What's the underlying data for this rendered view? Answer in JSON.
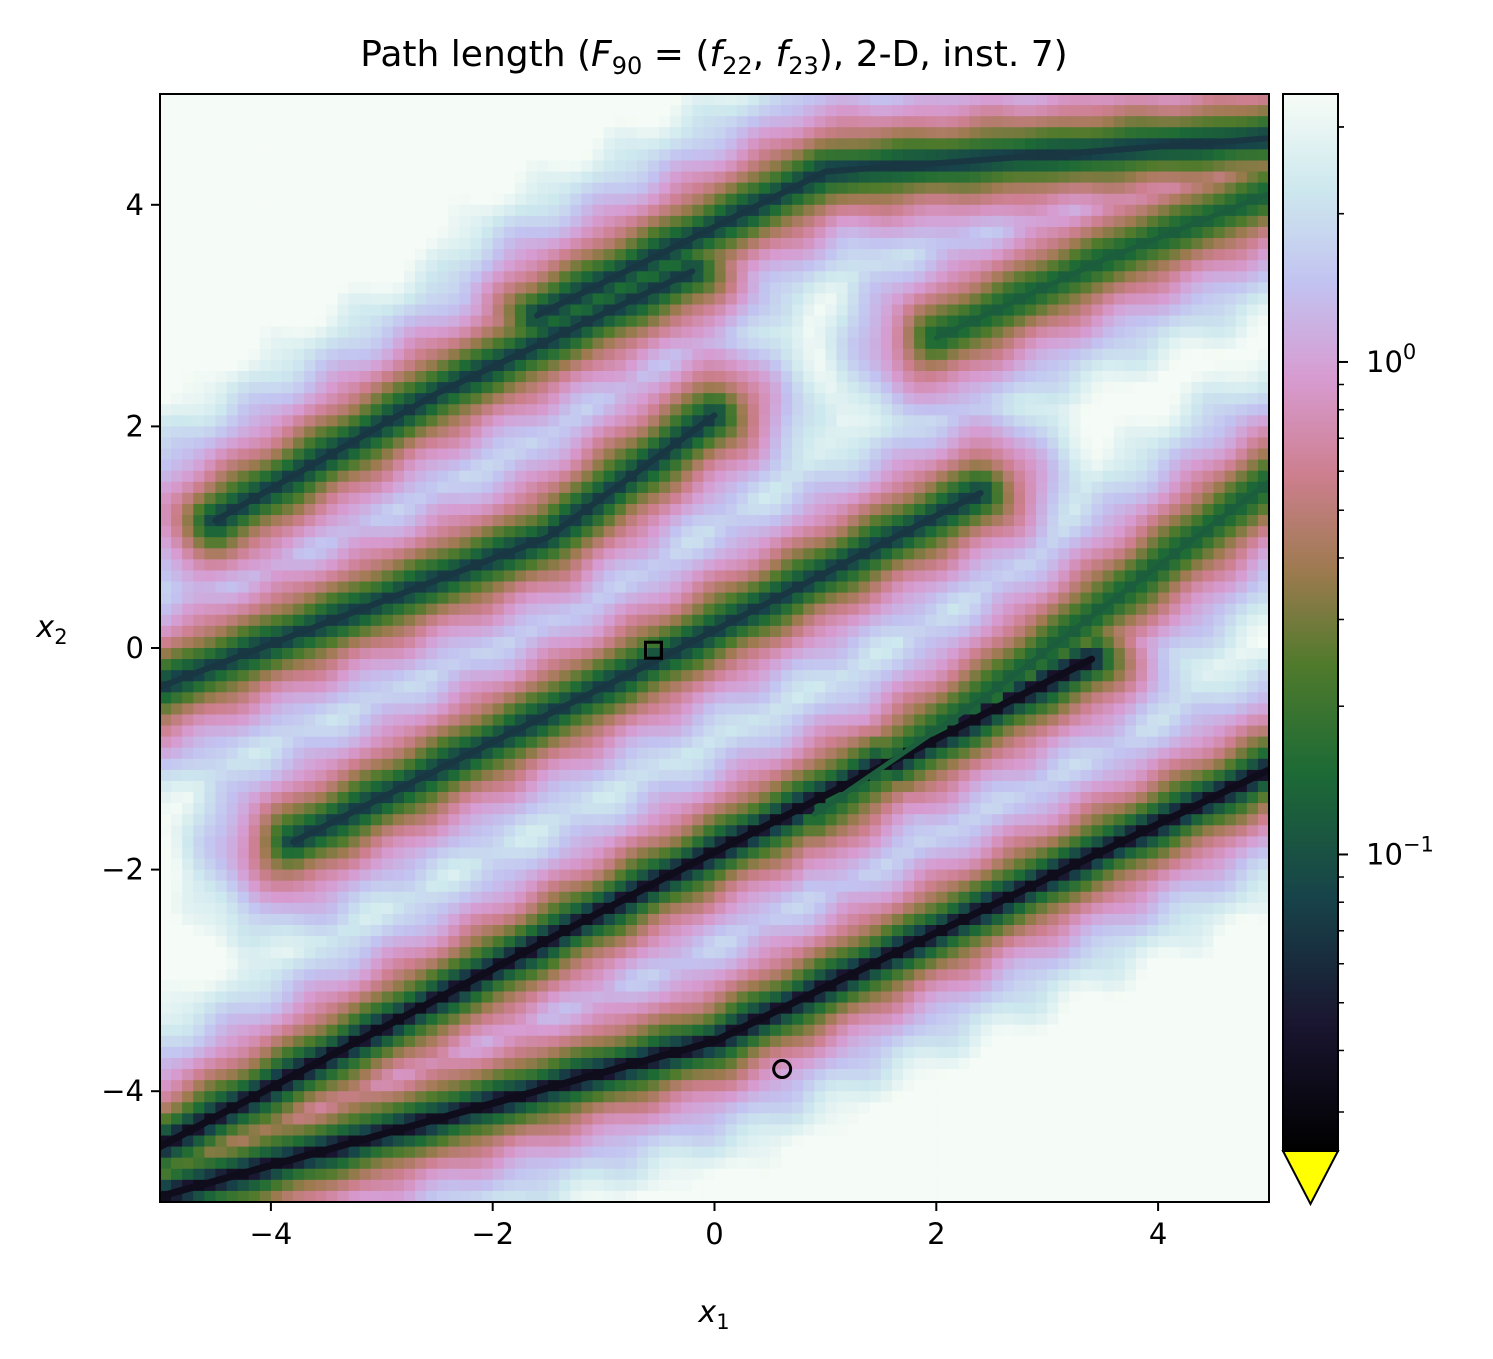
{
  "chart_data": {
    "type": "heatmap",
    "title": {
      "prefix": "Path length (",
      "F": "F",
      "F_sub": "90",
      "eq": " = (",
      "f1": "f",
      "f1_sub": "22",
      "comma": ", ",
      "f2": "f",
      "f2_sub": "23",
      "suffix": "), 2-D, inst. 7)"
    },
    "xlabel": {
      "base": "x",
      "sub": "1"
    },
    "ylabel": {
      "base": "x",
      "sub": "2"
    },
    "xlim": [
      -5,
      5
    ],
    "ylim": [
      -5,
      5
    ],
    "xticks": [
      {
        "value": -4,
        "label": "−4"
      },
      {
        "value": -2,
        "label": "−2"
      },
      {
        "value": 0,
        "label": "0"
      },
      {
        "value": 2,
        "label": "2"
      },
      {
        "value": 4,
        "label": "4"
      }
    ],
    "yticks": [
      {
        "value": 4,
        "label": "4"
      },
      {
        "value": 2,
        "label": "2"
      },
      {
        "value": 0,
        "label": "0"
      },
      {
        "value": -2,
        "label": "−2"
      },
      {
        "value": -4,
        "label": "−4"
      }
    ],
    "colorbar": {
      "scale": "log",
      "colormap": "cubehelix",
      "vmin": 0.025,
      "vmax": 3.5,
      "ticks": [
        {
          "value": 1.0,
          "base": "10",
          "exp": "0"
        },
        {
          "value": 0.1,
          "base": "10",
          "exp": "−1"
        }
      ],
      "extend": "min",
      "under_color": "#ffff00"
    },
    "valleys": [
      {
        "x": [
          -5.0,
          -0.5,
          3.4
        ],
        "y": [
          -4.5,
          -2.1,
          -0.1
        ],
        "depth": "deep"
      },
      {
        "x": [
          -5.0,
          0.0,
          5.0
        ],
        "y": [
          -4.95,
          -3.55,
          -1.1
        ],
        "depth": "deep"
      },
      {
        "x": [
          -3.8,
          -0.5,
          2.4
        ],
        "y": [
          -1.75,
          -0.1,
          1.4
        ],
        "depth": "medium"
      },
      {
        "x": [
          -5.0,
          -1.5,
          0.0
        ],
        "y": [
          -0.35,
          1.0,
          2.1
        ],
        "depth": "medium"
      },
      {
        "x": [
          -4.5,
          -2.5,
          -0.2
        ],
        "y": [
          1.15,
          2.3,
          3.4
        ],
        "depth": "medium"
      },
      {
        "x": [
          -1.6,
          1.0,
          5.0
        ],
        "y": [
          3.0,
          4.3,
          4.6
        ],
        "depth": "medium"
      },
      {
        "x": [
          2.0,
          3.5,
          5.0
        ],
        "y": [
          2.8,
          3.5,
          4.1
        ],
        "depth": "shallow"
      },
      {
        "x": [
          0.9,
          2.5,
          5.0
        ],
        "y": [
          -1.5,
          -0.4,
          1.5
        ],
        "depth": "shallow"
      }
    ],
    "markers": [
      {
        "shape": "square",
        "x": -0.55,
        "y": -0.02
      },
      {
        "shape": "circle",
        "x": 0.61,
        "y": -3.8
      }
    ]
  }
}
